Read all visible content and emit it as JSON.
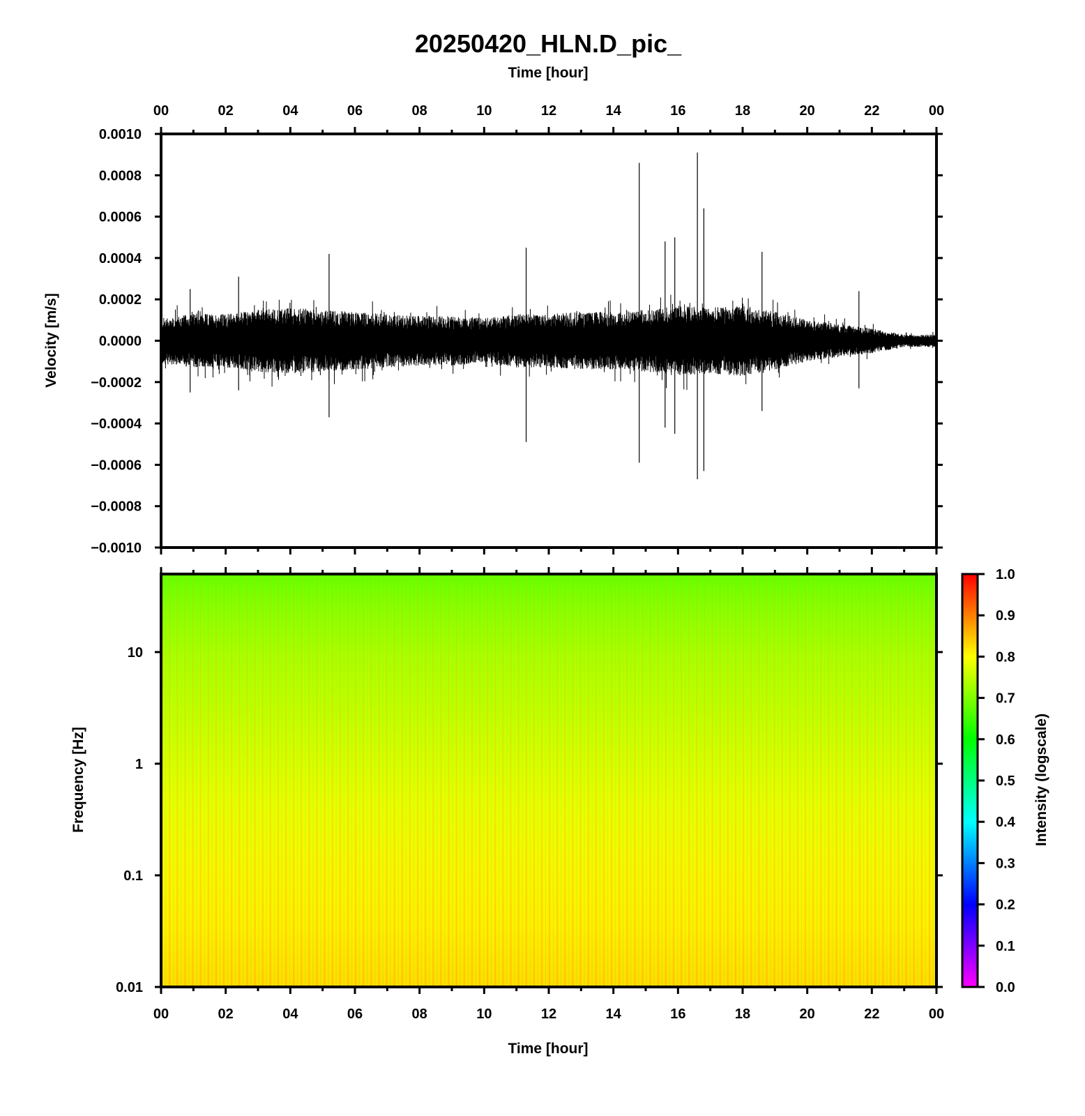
{
  "chart_data": [
    {
      "type": "line",
      "title": "20250420_HLN.D_pic_",
      "xlabel": "Time [hour]",
      "ylabel": "Velocity [m/s]",
      "x_tick_labels": [
        "00",
        "02",
        "04",
        "06",
        "08",
        "10",
        "12",
        "14",
        "16",
        "18",
        "20",
        "22",
        "00"
      ],
      "xlim": [
        0,
        24
      ],
      "ylim": [
        -0.001,
        0.001
      ],
      "y_tick_labels": [
        "0.0010",
        "0.0008",
        "0.0006",
        "0.0004",
        "0.0002",
        "0.0000",
        "−0.0002",
        "−0.0004",
        "−0.0006",
        "−0.0008",
        "−0.0010"
      ],
      "y_tick_values": [
        0.001,
        0.0008,
        0.0006,
        0.0004,
        0.0002,
        0,
        -0.0002,
        -0.0004,
        -0.0006,
        -0.0008,
        -0.001
      ],
      "series_color": "#000000",
      "envelope": {
        "hours": [
          0,
          1,
          2,
          3,
          4,
          5,
          6,
          7,
          8,
          9,
          10,
          11,
          12,
          13,
          14,
          15,
          16,
          17,
          18,
          19,
          20,
          21,
          22,
          23,
          24
        ],
        "max": [
          0.00011,
          0.00013,
          0.00013,
          0.00015,
          0.00016,
          0.00015,
          0.00014,
          0.00013,
          0.00012,
          0.00012,
          0.00011,
          0.00013,
          0.00013,
          0.00014,
          0.00014,
          0.00015,
          0.00017,
          0.00016,
          0.00017,
          0.00014,
          0.0001,
          8e-05,
          6e-05,
          3e-05,
          3e-05
        ]
      },
      "spikes": [
        {
          "hour": 0.9,
          "max": 0.00025,
          "min": -0.00025
        },
        {
          "hour": 2.4,
          "max": 0.00031,
          "min": -0.00024
        },
        {
          "hour": 5.2,
          "max": 0.00042,
          "min": -0.00037
        },
        {
          "hour": 11.3,
          "max": 0.00045,
          "min": -0.00049
        },
        {
          "hour": 14.8,
          "max": 0.00086,
          "min": -0.00059
        },
        {
          "hour": 15.6,
          "max": 0.00048,
          "min": -0.00042
        },
        {
          "hour": 15.9,
          "max": 0.0005,
          "min": -0.00045
        },
        {
          "hour": 16.6,
          "max": 0.00091,
          "min": -0.00067
        },
        {
          "hour": 16.8,
          "max": 0.00064,
          "min": -0.00063
        },
        {
          "hour": 18.6,
          "max": 0.00043,
          "min": -0.00034
        },
        {
          "hour": 21.6,
          "max": 0.00024,
          "min": -0.00023
        }
      ]
    },
    {
      "type": "heatmap",
      "xlabel": "Time [hour]",
      "ylabel": "Frequency [Hz]",
      "x_tick_labels": [
        "00",
        "02",
        "04",
        "06",
        "08",
        "10",
        "12",
        "14",
        "16",
        "18",
        "20",
        "22",
        "00"
      ],
      "xlim": [
        0,
        24
      ],
      "y_scale": "log",
      "ylim": [
        0.01,
        50
      ],
      "y_tick_labels": [
        "10",
        "1",
        "0.1",
        "0.01"
      ],
      "y_tick_values": [
        10,
        1,
        0.1,
        0.01
      ],
      "colorbar": {
        "label": "Intensity (logscale)",
        "range": [
          0,
          1
        ],
        "tick_labels": [
          "1.0",
          "0.9",
          "0.8",
          "0.7",
          "0.6",
          "0.5",
          "0.4",
          "0.3",
          "0.2",
          "0.1",
          "0.0"
        ],
        "tick_values": [
          1.0,
          0.9,
          0.8,
          0.7,
          0.6,
          0.5,
          0.4,
          0.3,
          0.2,
          0.1,
          0.0
        ],
        "colors": [
          "#ff00ff",
          "#0000ff",
          "#00ffff",
          "#00ff00",
          "#ffff00",
          "#ff0000"
        ]
      },
      "intensity_by_frequency": {
        "freq_hz": [
          0.01,
          0.03,
          0.1,
          0.3,
          1,
          3,
          10,
          30,
          50
        ],
        "intensity": [
          0.86,
          0.83,
          0.81,
          0.8,
          0.78,
          0.76,
          0.74,
          0.7,
          0.66
        ]
      }
    }
  ]
}
